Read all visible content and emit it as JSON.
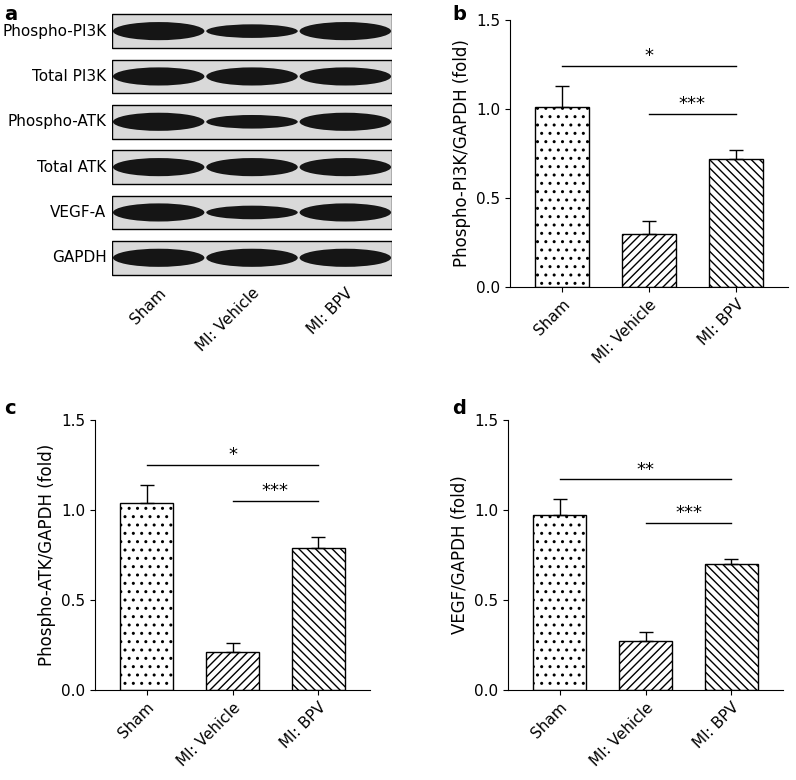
{
  "blot": {
    "panel": "a",
    "rows": [
      "Phospho-PI3K",
      "Total PI3K",
      "Phospho-ATK",
      "Total ATK",
      "VEGF-A",
      "GAPDH"
    ],
    "lanes": [
      "Sham",
      "MI: Vehicle",
      "MI: BPV"
    ]
  },
  "chart_data": [
    {
      "type": "bar",
      "panel": "b",
      "ylabel": "Phospho-PI3K/GAPDH (fold)",
      "categories": [
        "Sham",
        "MI: Vehicle",
        "MI: BPV"
      ],
      "values": [
        1.01,
        0.3,
        0.72
      ],
      "errors": [
        0.12,
        0.07,
        0.05
      ],
      "ylim": [
        0,
        1.5
      ],
      "yticks": [
        {
          "value": 0,
          "label": "0.0"
        },
        {
          "value": 0.5,
          "label": "0.5"
        },
        {
          "value": 1.0,
          "label": "1.0"
        },
        {
          "value": 1.5,
          "label": "1.5"
        }
      ],
      "annotations": [
        {
          "text": "*",
          "from": "Sham",
          "to": "MI: BPV"
        },
        {
          "text": "***",
          "from": "MI: Vehicle",
          "to": "MI: BPV"
        }
      ]
    },
    {
      "type": "bar",
      "panel": "c",
      "ylabel": "Phospho-ATK/GAPDH (fold)",
      "categories": [
        "Sham",
        "MI: Vehicle",
        "MI: BPV"
      ],
      "values": [
        1.04,
        0.21,
        0.79
      ],
      "errors": [
        0.1,
        0.05,
        0.06
      ],
      "ylim": [
        0,
        1.5
      ],
      "yticks": [
        {
          "value": 0,
          "label": "0.0"
        },
        {
          "value": 0.5,
          "label": "0.5"
        },
        {
          "value": 1.0,
          "label": "1.0"
        },
        {
          "value": 1.5,
          "label": "1.5"
        }
      ],
      "annotations": [
        {
          "text": "*",
          "from": "Sham",
          "to": "MI: BPV"
        },
        {
          "text": "***",
          "from": "MI: Vehicle",
          "to": "MI: BPV"
        }
      ]
    },
    {
      "type": "bar",
      "panel": "d",
      "ylabel": "VEGF/GAPDH (fold)",
      "categories": [
        "Sham",
        "MI: Vehicle",
        "MI: BPV"
      ],
      "values": [
        0.97,
        0.27,
        0.7
      ],
      "errors": [
        0.09,
        0.05,
        0.03
      ],
      "ylim": [
        0,
        1.5
      ],
      "yticks": [
        {
          "value": 0,
          "label": "0.0"
        },
        {
          "value": 0.5,
          "label": "0.5"
        },
        {
          "value": 1.0,
          "label": "1.0"
        },
        {
          "value": 1.5,
          "label": "1.5"
        }
      ],
      "annotations": [
        {
          "text": "**",
          "from": "Sham",
          "to": "MI: BPV"
        },
        {
          "text": "***",
          "from": "MI: Vehicle",
          "to": "MI: BPV"
        }
      ]
    }
  ]
}
